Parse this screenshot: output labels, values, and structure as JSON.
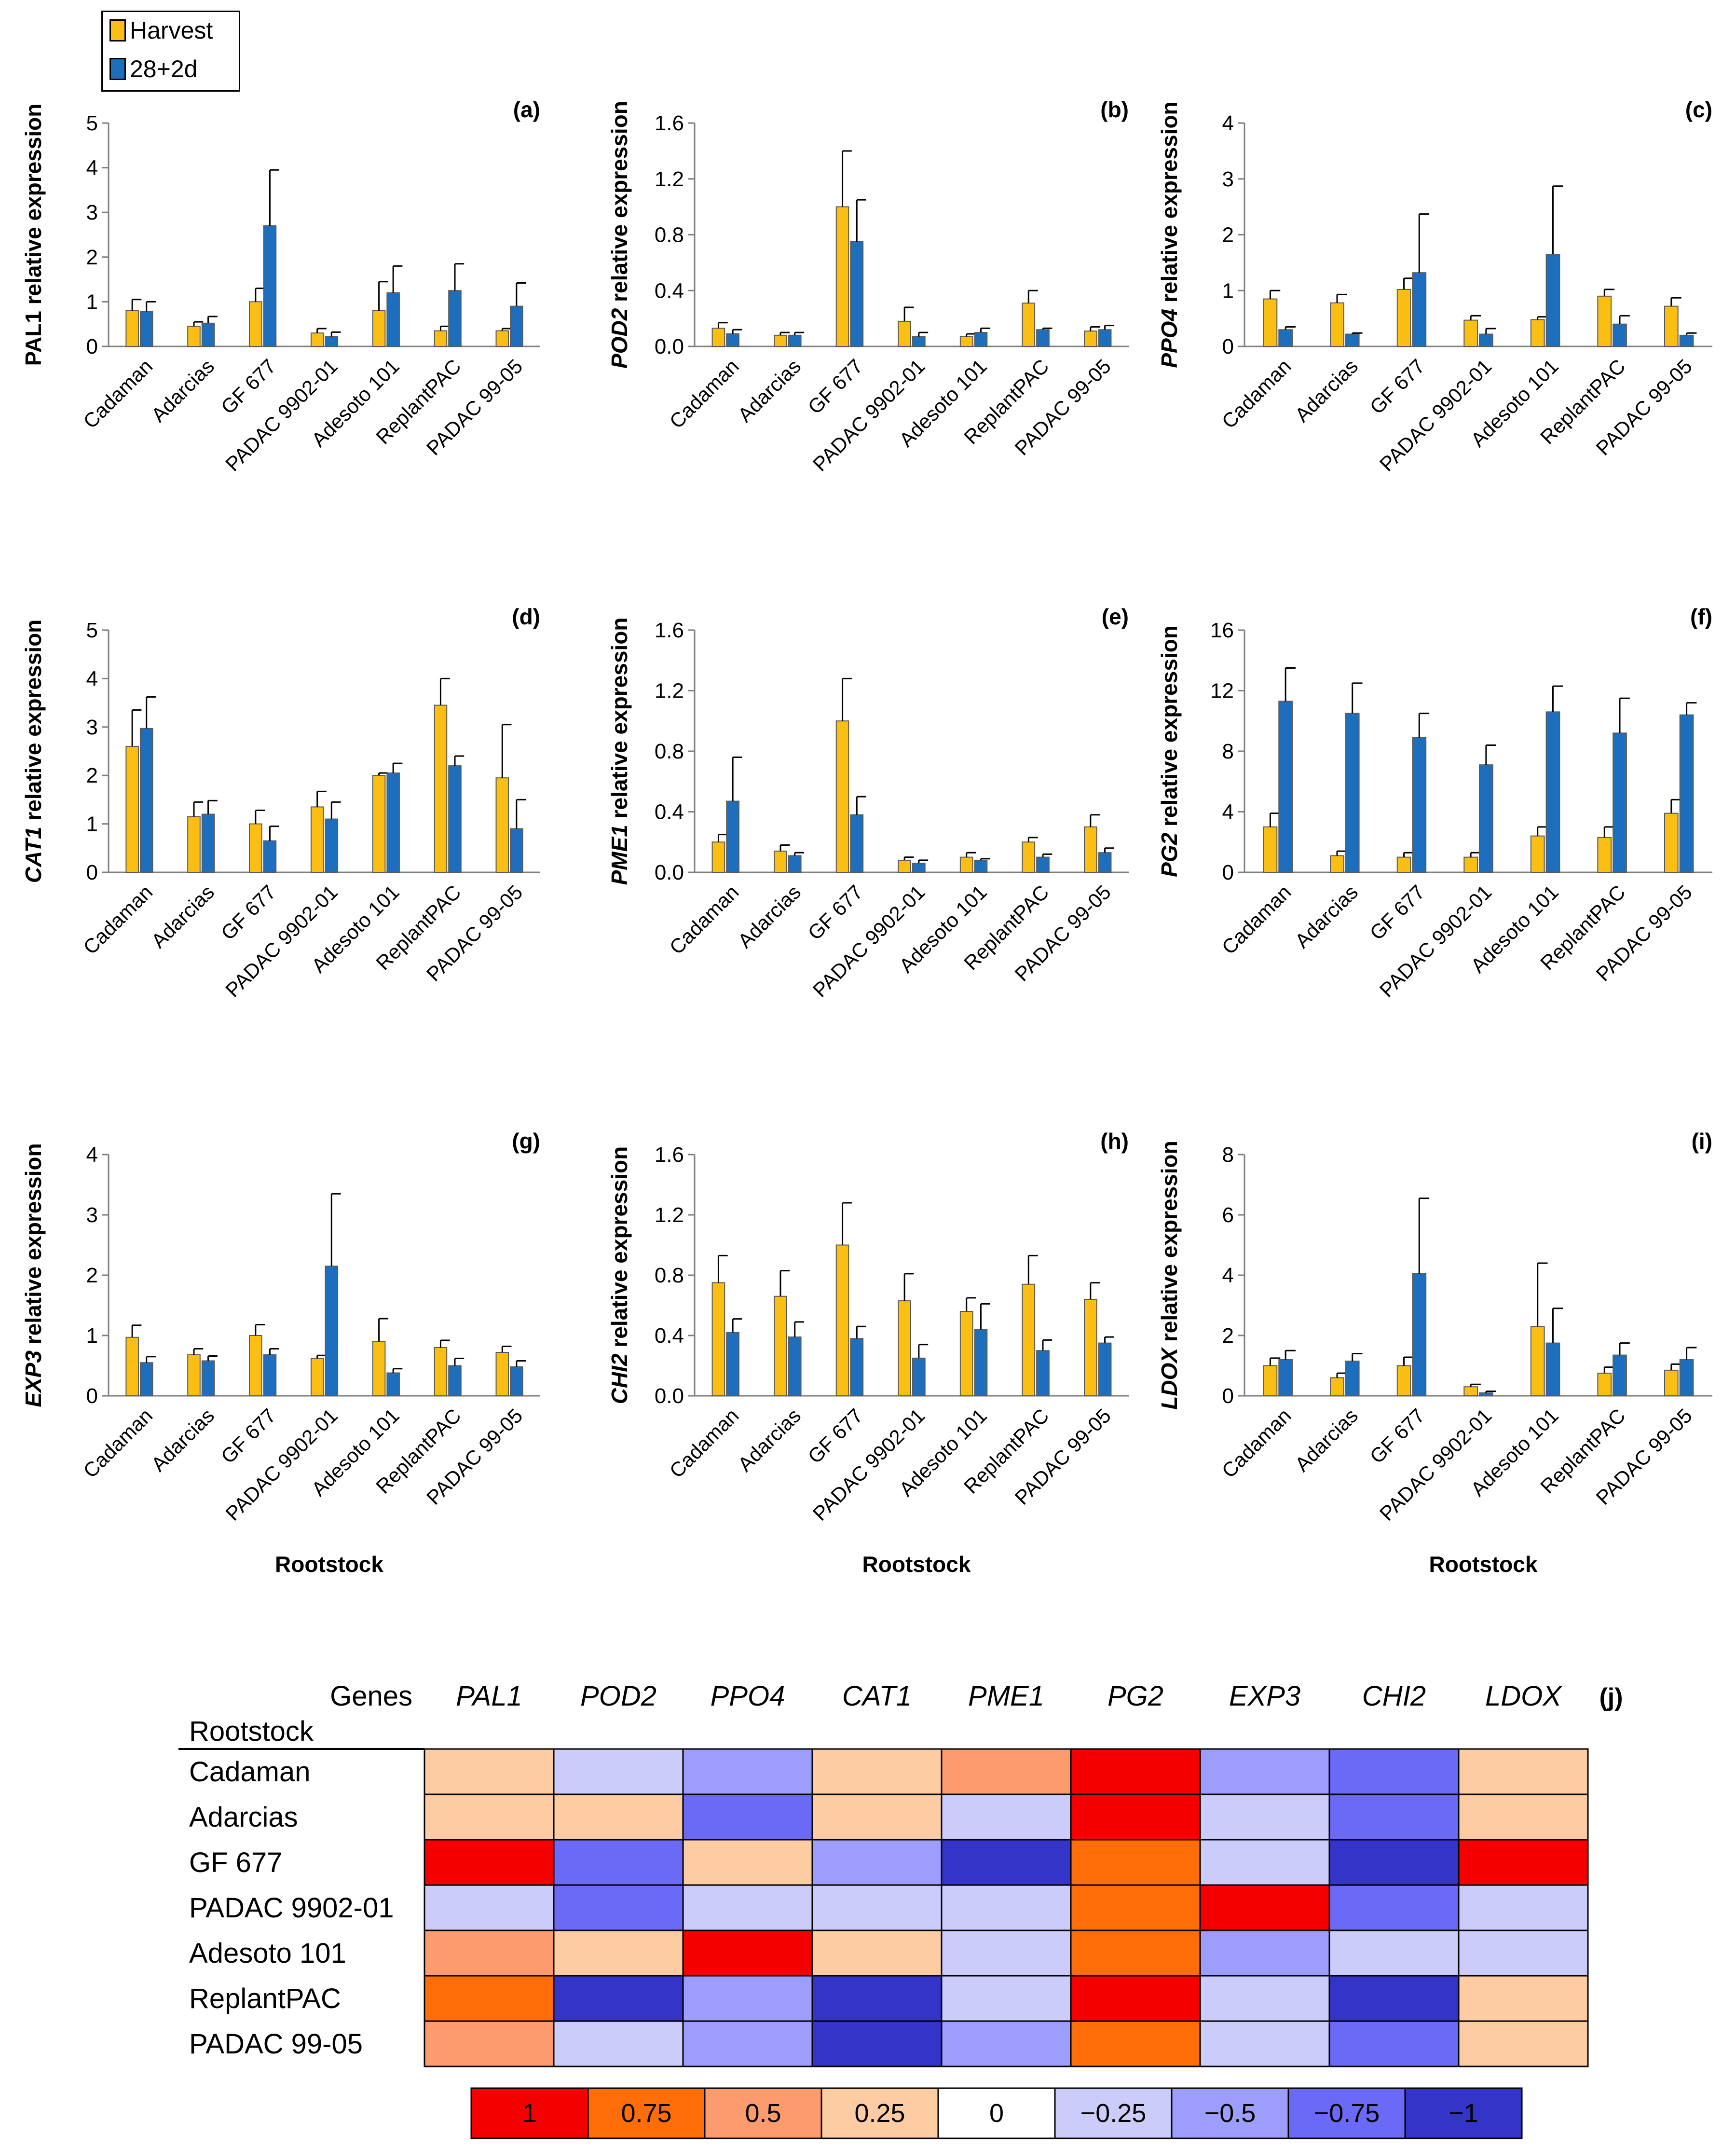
{
  "legend": {
    "series": [
      "Harvest",
      "28+2d"
    ],
    "colors": [
      "#fbbf13",
      "#1d6fbd"
    ]
  },
  "xlabel": "Rootstock",
  "chart_data": [
    {
      "type": "bar",
      "panel": "(a)",
      "ylabel_gene": "PAL1",
      "ylabel_rest": "relative expression",
      "italic": false,
      "categories": [
        "Cadaman",
        "Adarcias",
        "GF 677",
        "PADAC 9902-01",
        "Adesoto 101",
        "ReplantPAC",
        "PADAC 99-05"
      ],
      "ylim": [
        0,
        5
      ],
      "yticks": [
        "0",
        "1",
        "2",
        "3",
        "4",
        "5"
      ],
      "series": [
        {
          "name": "Harvest",
          "values": [
            0.8,
            0.45,
            1.0,
            0.3,
            0.8,
            0.35,
            0.35
          ],
          "errors": [
            0.25,
            0.1,
            0.3,
            0.1,
            0.65,
            0.1,
            0.05
          ]
        },
        {
          "name": "28+2d",
          "values": [
            0.78,
            0.52,
            2.7,
            0.22,
            1.2,
            1.25,
            0.9
          ],
          "errors": [
            0.22,
            0.15,
            1.25,
            0.1,
            0.6,
            0.6,
            0.52
          ]
        }
      ]
    },
    {
      "type": "bar",
      "panel": "(b)",
      "ylabel_gene": "POD2",
      "ylabel_rest": "relative expression",
      "italic": true,
      "categories": [
        "Cadaman",
        "Adarcias",
        "GF 677",
        "PADAC 9902-01",
        "Adesoto 101",
        "ReplantPAC",
        "PADAC 99-05"
      ],
      "ylim": [
        0,
        1.6
      ],
      "yticks": [
        "0.0",
        "0.4",
        "0.8",
        "1.2",
        "1.6"
      ],
      "series": [
        {
          "name": "Harvest",
          "values": [
            0.13,
            0.08,
            1.0,
            0.18,
            0.07,
            0.31,
            0.11
          ],
          "errors": [
            0.04,
            0.02,
            0.4,
            0.1,
            0.02,
            0.09,
            0.03
          ]
        },
        {
          "name": "28+2d",
          "values": [
            0.09,
            0.08,
            0.75,
            0.07,
            0.1,
            0.12,
            0.12
          ],
          "errors": [
            0.03,
            0.02,
            0.3,
            0.03,
            0.03,
            0.01,
            0.03
          ]
        }
      ]
    },
    {
      "type": "bar",
      "panel": "(c)",
      "ylabel_gene": "PPO4",
      "ylabel_rest": "relative expression",
      "italic": true,
      "categories": [
        "Cadaman",
        "Adarcias",
        "GF 677",
        "PADAC 9902-01",
        "Adesoto 101",
        "ReplantPAC",
        "PADAC 99-05"
      ],
      "ylim": [
        0,
        4
      ],
      "yticks": [
        "0",
        "1",
        "2",
        "3",
        "4"
      ],
      "series": [
        {
          "name": "Harvest",
          "values": [
            0.85,
            0.78,
            1.02,
            0.47,
            0.48,
            0.9,
            0.72
          ],
          "errors": [
            0.15,
            0.15,
            0.2,
            0.08,
            0.05,
            0.12,
            0.15
          ]
        },
        {
          "name": "28+2d",
          "values": [
            0.3,
            0.22,
            1.32,
            0.22,
            1.65,
            0.4,
            0.2
          ],
          "errors": [
            0.05,
            0.02,
            1.05,
            0.1,
            1.22,
            0.15,
            0.04
          ]
        }
      ]
    },
    {
      "type": "bar",
      "panel": "(d)",
      "ylabel_gene": "CAT1",
      "ylabel_rest": "relative expression",
      "italic": true,
      "categories": [
        "Cadaman",
        "Adarcias",
        "GF 677",
        "PADAC 9902-01",
        "Adesoto 101",
        "ReplantPAC",
        "PADAC 99-05"
      ],
      "ylim": [
        0,
        5
      ],
      "yticks": [
        "0",
        "1",
        "2",
        "3",
        "4",
        "5"
      ],
      "series": [
        {
          "name": "Harvest",
          "values": [
            2.6,
            1.15,
            1.0,
            1.35,
            2.0,
            3.45,
            1.95
          ],
          "errors": [
            0.75,
            0.3,
            0.28,
            0.32,
            0.05,
            0.55,
            1.1
          ]
        },
        {
          "name": "28+2d",
          "values": [
            2.97,
            1.2,
            0.65,
            1.1,
            2.05,
            2.2,
            0.9
          ],
          "errors": [
            0.65,
            0.28,
            0.3,
            0.35,
            0.2,
            0.2,
            0.6
          ]
        }
      ]
    },
    {
      "type": "bar",
      "panel": "(e)",
      "ylabel_gene": "PME1",
      "ylabel_rest": "relative expression",
      "italic": true,
      "categories": [
        "Cadaman",
        "Adarcias",
        "GF 677",
        "PADAC 9902-01",
        "Adesoto 101",
        "ReplantPAC",
        "PADAC 99-05"
      ],
      "ylim": [
        0,
        1.6
      ],
      "yticks": [
        "0.0",
        "0.4",
        "0.8",
        "1.2",
        "1.6"
      ],
      "series": [
        {
          "name": "Harvest",
          "values": [
            0.2,
            0.14,
            1.0,
            0.08,
            0.1,
            0.2,
            0.3
          ],
          "errors": [
            0.05,
            0.04,
            0.28,
            0.02,
            0.03,
            0.03,
            0.08
          ]
        },
        {
          "name": "28+2d",
          "values": [
            0.47,
            0.11,
            0.38,
            0.06,
            0.08,
            0.1,
            0.13
          ],
          "errors": [
            0.29,
            0.02,
            0.12,
            0.02,
            0.01,
            0.02,
            0.03
          ]
        }
      ]
    },
    {
      "type": "bar",
      "panel": "(f)",
      "ylabel_gene": "PG2",
      "ylabel_rest": "relative expression",
      "italic": true,
      "categories": [
        "Cadaman",
        "Adarcias",
        "GF 677",
        "PADAC 9902-01",
        "Adesoto 101",
        "ReplantPAC",
        "PADAC 99-05"
      ],
      "ylim": [
        0,
        16
      ],
      "yticks": [
        "0",
        "4",
        "8",
        "12",
        "16"
      ],
      "series": [
        {
          "name": "Harvest",
          "values": [
            3.0,
            1.1,
            1.0,
            1.0,
            2.4,
            2.3,
            3.9
          ],
          "errors": [
            0.9,
            0.3,
            0.3,
            0.3,
            0.6,
            0.7,
            0.9
          ]
        },
        {
          "name": "28+2d",
          "values": [
            11.3,
            10.5,
            8.9,
            7.1,
            10.6,
            9.2,
            10.4
          ],
          "errors": [
            2.2,
            2.0,
            1.6,
            1.3,
            1.7,
            2.3,
            0.8
          ]
        }
      ]
    },
    {
      "type": "bar",
      "panel": "(g)",
      "ylabel_gene": "EXP3",
      "ylabel_rest": "relative expression",
      "italic": true,
      "categories": [
        "Cadaman",
        "Adarcias",
        "GF 677",
        "PADAC 9902-01",
        "Adesoto 101",
        "ReplantPAC",
        "PADAC 99-05"
      ],
      "ylim": [
        0,
        4
      ],
      "yticks": [
        "0",
        "1",
        "2",
        "3",
        "4"
      ],
      "series": [
        {
          "name": "Harvest",
          "values": [
            0.97,
            0.68,
            1.0,
            0.62,
            0.9,
            0.8,
            0.72
          ],
          "errors": [
            0.2,
            0.1,
            0.18,
            0.05,
            0.38,
            0.12,
            0.1
          ]
        },
        {
          "name": "28+2d",
          "values": [
            0.55,
            0.58,
            0.68,
            2.15,
            0.38,
            0.5,
            0.48
          ],
          "errors": [
            0.1,
            0.08,
            0.1,
            1.2,
            0.07,
            0.12,
            0.1
          ]
        }
      ]
    },
    {
      "type": "bar",
      "panel": "(h)",
      "ylabel_gene": "CHI2",
      "ylabel_rest": "relative expression",
      "italic": true,
      "categories": [
        "Cadaman",
        "Adarcias",
        "GF 677",
        "PADAC 9902-01",
        "Adesoto 101",
        "ReplantPAC",
        "PADAC 99-05"
      ],
      "ylim": [
        0,
        1.6
      ],
      "yticks": [
        "0.0",
        "0.4",
        "0.8",
        "1.2",
        "1.6"
      ],
      "series": [
        {
          "name": "Harvest",
          "values": [
            0.75,
            0.66,
            1.0,
            0.63,
            0.56,
            0.74,
            0.64
          ],
          "errors": [
            0.18,
            0.17,
            0.28,
            0.18,
            0.09,
            0.19,
            0.11
          ]
        },
        {
          "name": "28+2d",
          "values": [
            0.42,
            0.39,
            0.38,
            0.25,
            0.44,
            0.3,
            0.35
          ],
          "errors": [
            0.09,
            0.1,
            0.08,
            0.09,
            0.17,
            0.07,
            0.04
          ]
        }
      ]
    },
    {
      "type": "bar",
      "panel": "(i)",
      "ylabel_gene": "LDOX",
      "ylabel_rest": "relative expression",
      "italic": true,
      "categories": [
        "Cadaman",
        "Adarcias",
        "GF 677",
        "PADAC 9902-01",
        "Adesoto 101",
        "ReplantPAC",
        "PADAC 99-05"
      ],
      "ylim": [
        0,
        8
      ],
      "yticks": [
        "0",
        "2",
        "4",
        "6",
        "8"
      ],
      "series": [
        {
          "name": "Harvest",
          "values": [
            1.0,
            0.6,
            1.0,
            0.3,
            2.3,
            0.75,
            0.85
          ],
          "errors": [
            0.25,
            0.15,
            0.28,
            0.08,
            2.1,
            0.2,
            0.2
          ]
        },
        {
          "name": "28+2d",
          "values": [
            1.2,
            1.15,
            4.05,
            0.1,
            1.75,
            1.35,
            1.2
          ],
          "errors": [
            0.3,
            0.25,
            2.5,
            0.05,
            1.15,
            0.4,
            0.4
          ]
        }
      ]
    },
    {
      "type": "heatmap",
      "panel": "(j)",
      "corner_genes": "Genes",
      "corner_rootstock": "Rootstock",
      "columns": [
        "PAL1",
        "POD2",
        "PPO4",
        "CAT1",
        "PME1",
        "PG2",
        "EXP3",
        "CHI2",
        "LDOX"
      ],
      "rows": [
        "Cadaman",
        "Adarcias",
        "GF 677",
        "PADAC 9902-01",
        "Adesoto 101",
        "ReplantPAC",
        "PADAC 99-05"
      ],
      "values": [
        [
          0.25,
          -0.25,
          -0.5,
          0.25,
          0.5,
          1,
          -0.5,
          -0.75,
          0.25
        ],
        [
          0.25,
          0.25,
          -0.75,
          0.25,
          -0.25,
          1,
          -0.25,
          -0.75,
          0.25
        ],
        [
          1,
          -0.75,
          0.25,
          -0.5,
          -1,
          0.75,
          -0.25,
          -1,
          1
        ],
        [
          -0.25,
          -0.75,
          -0.25,
          -0.25,
          -0.25,
          0.75,
          1,
          -0.75,
          -0.25
        ],
        [
          0.5,
          0.25,
          1,
          0.25,
          -0.25,
          0.75,
          -0.5,
          -0.25,
          -0.25
        ],
        [
          0.75,
          -1,
          -0.5,
          -1,
          -0.25,
          1,
          -0.25,
          -1,
          0.25
        ],
        [
          0.5,
          -0.25,
          -0.5,
          -1,
          -0.5,
          0.75,
          -0.25,
          -0.75,
          0.25
        ]
      ],
      "scale": [
        {
          "label": "1",
          "value": 1,
          "color": "#f50000"
        },
        {
          "label": "0.75",
          "value": 0.75,
          "color": "#ff6d08"
        },
        {
          "label": "0.5",
          "value": 0.5,
          "color": "#fc9b6e"
        },
        {
          "label": "0.25",
          "value": 0.25,
          "color": "#fdcca3"
        },
        {
          "label": "0",
          "value": 0,
          "color": "#ffffff"
        },
        {
          "label": "−0.25",
          "value": -0.25,
          "color": "#ccccfb"
        },
        {
          "label": "−0.5",
          "value": -0.5,
          "color": "#9d9dfb"
        },
        {
          "label": "−0.75",
          "value": -0.75,
          "color": "#6a6af7"
        },
        {
          "label": "−1",
          "value": -1,
          "color": "#3434c8"
        }
      ]
    }
  ]
}
